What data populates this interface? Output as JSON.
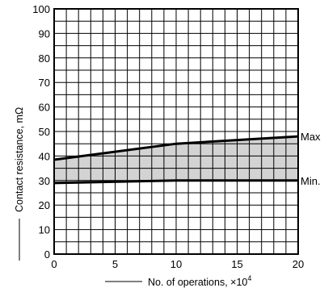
{
  "chart_data": {
    "type": "area",
    "title": "",
    "xlabel": "No. of operations, ×10",
    "xlabel_sup": "4",
    "ylabel": "Contact resistance, mΩ",
    "xlim": [
      0,
      20
    ],
    "ylim": [
      0,
      100
    ],
    "x_ticks": [
      "0",
      "5",
      "10",
      "15",
      "20"
    ],
    "y_ticks": [
      "0",
      "10",
      "20",
      "30",
      "40",
      "50",
      "60",
      "70",
      "80",
      "90",
      "100"
    ],
    "x_grid_step": 1,
    "y_grid_step": 5,
    "grid": true,
    "band_fill": "#d3d3d3",
    "line_color": "#000000",
    "series": [
      {
        "name": "Max",
        "x": [
          0,
          10,
          20
        ],
        "values": [
          38.5,
          45,
          48
        ]
      },
      {
        "name": "Min.",
        "x": [
          0,
          10,
          20
        ],
        "values": [
          29,
          30,
          30
        ]
      }
    ]
  }
}
